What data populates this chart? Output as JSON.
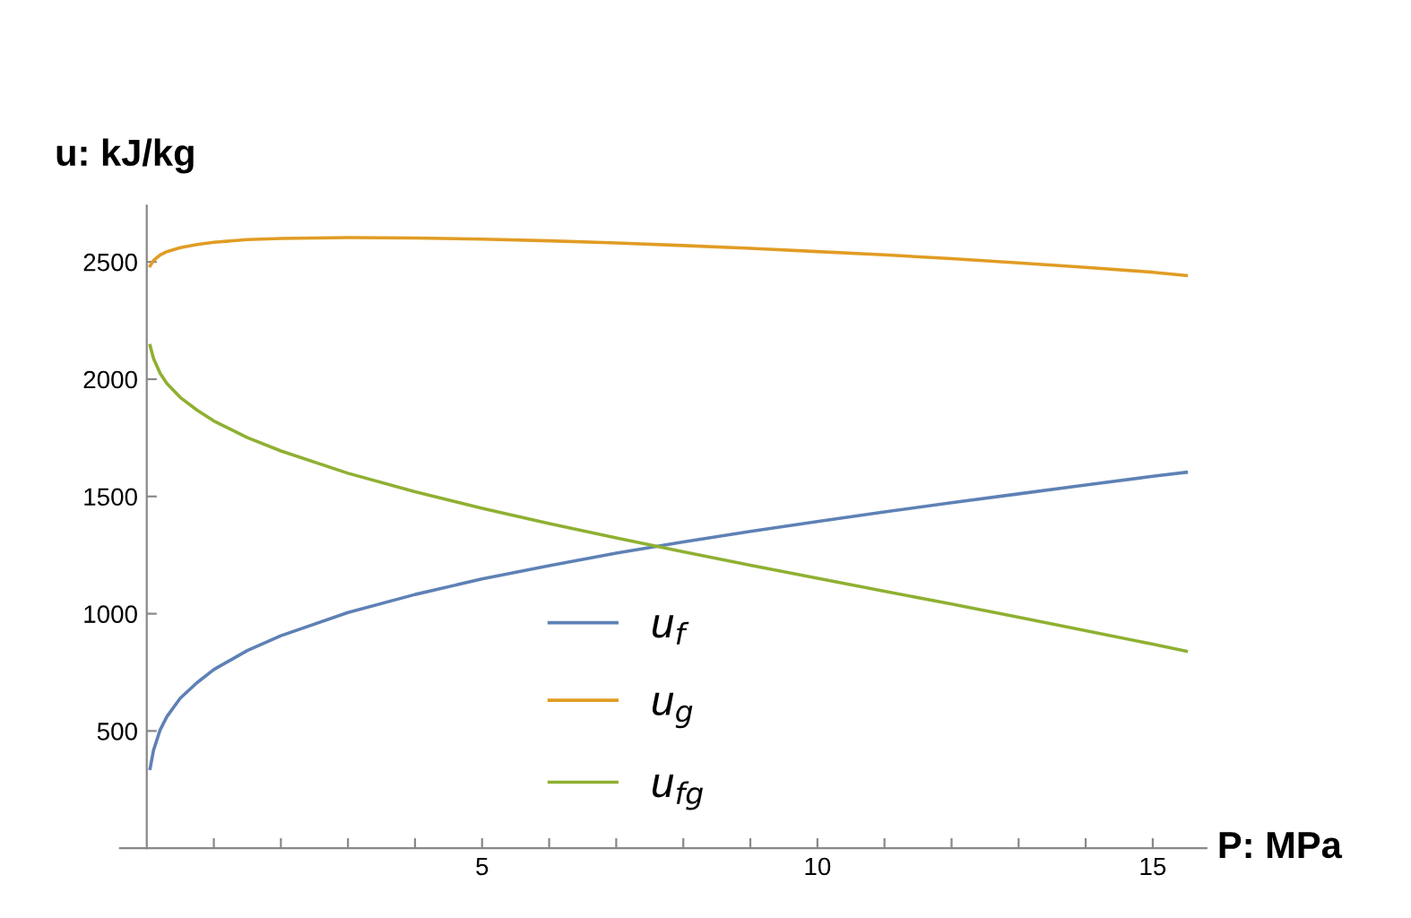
{
  "chart_data": {
    "type": "line",
    "xlabel": "P: MPa",
    "ylabel": "u: kJ/kg",
    "x": [
      0.05,
      0.1,
      0.2,
      0.3,
      0.5,
      0.75,
      1,
      1.5,
      2,
      3,
      4,
      5,
      6,
      7,
      8,
      9,
      10,
      11,
      12,
      13,
      14,
      15,
      15.5
    ],
    "series": [
      {
        "name": "u$_{f}$",
        "color": "#5e81b5",
        "values": [
          340,
          417,
          505,
          561,
          640,
          706,
          762,
          843,
          906,
          1005,
          1082,
          1148,
          1205,
          1258,
          1306,
          1351,
          1393,
          1434,
          1473,
          1511,
          1549,
          1586,
          1603
        ]
      },
      {
        "name": "u$_{g}$",
        "color": "#e19c24",
        "values": [
          2483,
          2506,
          2530,
          2544,
          2561,
          2574,
          2584,
          2595,
          2600,
          2604,
          2602,
          2597,
          2590,
          2581,
          2570,
          2558,
          2544,
          2530,
          2514,
          2496,
          2477,
          2456,
          2442
        ]
      },
      {
        "name": "u$_{fg}$",
        "color": "#8fb032",
        "values": [
          2143,
          2089,
          2025,
          1982,
          1922,
          1868,
          1822,
          1751,
          1694,
          1599,
          1520,
          1449,
          1384,
          1323,
          1264,
          1207,
          1151,
          1096,
          1041,
          985,
          928,
          870,
          840
        ]
      }
    ],
    "xlim": [
      -0.4,
      15.8
    ],
    "ylim": [
      0,
      2740
    ],
    "xticks": [
      {
        "value": 1,
        "label": null
      },
      {
        "value": 2,
        "label": null
      },
      {
        "value": 3,
        "label": null
      },
      {
        "value": 4,
        "label": null
      },
      5,
      {
        "value": 6,
        "label": null
      },
      {
        "value": 7,
        "label": null
      },
      {
        "value": 8,
        "label": null
      },
      {
        "value": 9,
        "label": null
      },
      10,
      {
        "value": 11,
        "label": null
      },
      {
        "value": 12,
        "label": null
      },
      {
        "value": 13,
        "label": null
      },
      {
        "value": 14,
        "label": null
      },
      15
    ],
    "yticks": [
      500,
      1000,
      1500,
      2000,
      2500
    ],
    "grid": false,
    "legend": "bottom",
    "marker": "none",
    "line_style": "solid"
  }
}
